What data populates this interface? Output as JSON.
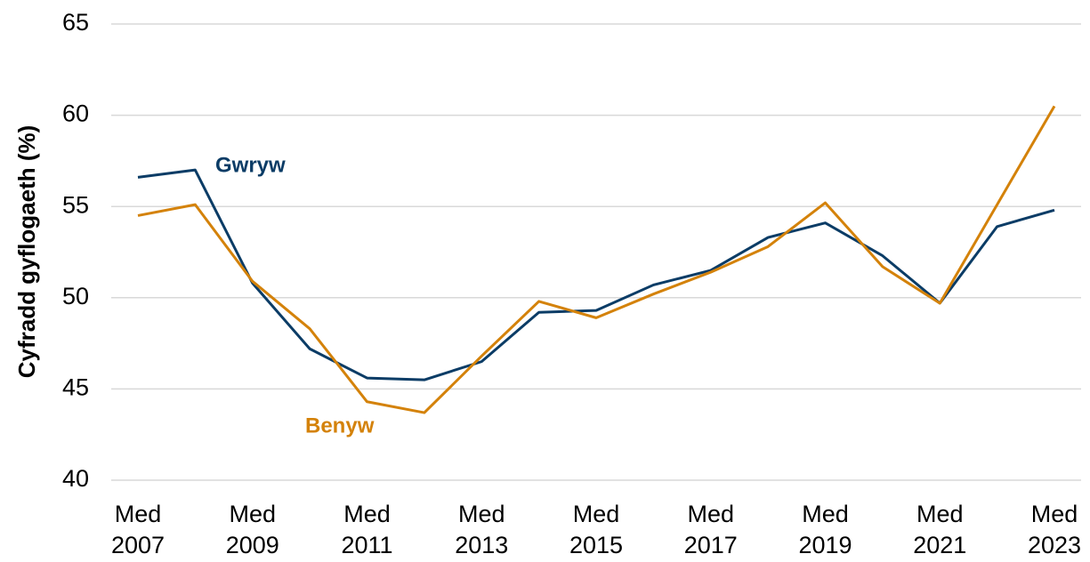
{
  "chart_data": {
    "type": "line",
    "y_label": "Cyfradd gyflogaeth (%)",
    "categories": [
      "Med 2007",
      null,
      "Med 2009",
      null,
      "Med 2011",
      null,
      "Med 2013",
      null,
      "Med 2015",
      null,
      "Med 2017",
      null,
      "Med 2019",
      null,
      "Med 2021",
      null,
      "Med 2023"
    ],
    "series": [
      {
        "name": "Gwryw",
        "color": "#0b3c66",
        "values": [
          56.6,
          57.0,
          50.8,
          47.2,
          45.6,
          45.5,
          46.5,
          49.2,
          49.3,
          50.7,
          51.5,
          53.3,
          54.1,
          52.3,
          49.7,
          53.9,
          54.8
        ]
      },
      {
        "name": "Benyw",
        "color": "#d4820a",
        "values": [
          54.5,
          55.1,
          50.9,
          48.3,
          44.3,
          43.7,
          46.8,
          49.8,
          48.9,
          50.2,
          51.4,
          52.8,
          55.2,
          51.7,
          49.7,
          55.1,
          60.5
        ]
      }
    ],
    "ylim": [
      40,
      65
    ],
    "yticks": [
      40,
      45,
      50,
      55,
      60,
      65
    ],
    "grid": true
  }
}
